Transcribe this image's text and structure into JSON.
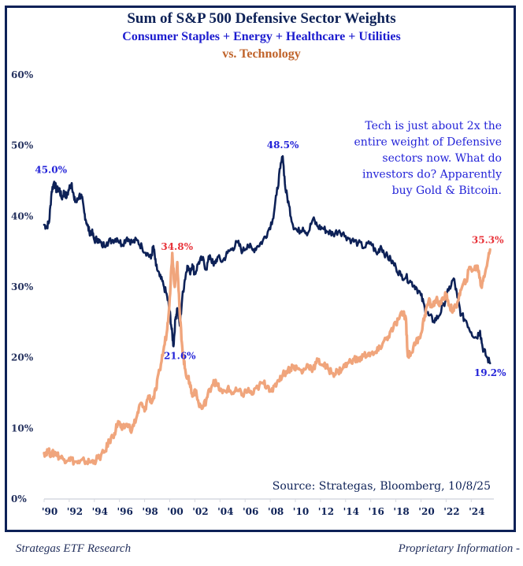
{
  "header": {
    "title": "Sum of S&P 500 Defensive Sector Weights",
    "subtitle": "Consumer Staples + Energy + Healthcare + Utilities",
    "subtitle2": "vs. Technology"
  },
  "footer": {
    "left": "Strategas ETF Research",
    "right": "Proprietary Information -"
  },
  "colors": {
    "defensive": "#0d2157",
    "technology": "#f0a57c",
    "frame": "#0d2157",
    "label_blue": "#2323d8",
    "label_red": "#e8333a",
    "axis": "#d6d8e0"
  },
  "chart_data": {
    "type": "line",
    "title": "Sum of S&P 500 Defensive Sector Weights",
    "subtitle": "Consumer Staples + Energy + Healthcare + Utilities vs. Technology",
    "xlabel": "",
    "ylabel": "",
    "xlim": [
      1990,
      2025.8
    ],
    "ylim": [
      0,
      60
    ],
    "grid": false,
    "legend": "none",
    "y_ticks": [
      "0%",
      "10%",
      "20%",
      "30%",
      "40%",
      "50%",
      "60%"
    ],
    "y_tick_values": [
      0,
      10,
      20,
      30,
      40,
      50,
      60
    ],
    "x_ticks": [
      "'90",
      "'92",
      "'94",
      "'96",
      "'98",
      "'00",
      "'02",
      "'04",
      "'06",
      "'08",
      "'10",
      "'12",
      "'14",
      "'16",
      "'18",
      "'20",
      "'22",
      "'24"
    ],
    "x_tick_values": [
      1990,
      1992,
      1994,
      1996,
      1998,
      2000,
      2002,
      2004,
      2006,
      2008,
      2010,
      2012,
      2014,
      2016,
      2018,
      2020,
      2022,
      2024
    ],
    "series": [
      {
        "name": "Defensive Sectors (Staples + Energy + Healthcare + Utilities)",
        "color": "#0d2157",
        "points": [
          [
            1990.0,
            38.8
          ],
          [
            1990.2,
            38.5
          ],
          [
            1990.4,
            39.2
          ],
          [
            1990.6,
            43.5
          ],
          [
            1990.8,
            44.9
          ],
          [
            1991.0,
            43.6
          ],
          [
            1991.2,
            44.0
          ],
          [
            1991.4,
            42.5
          ],
          [
            1991.6,
            43.5
          ],
          [
            1991.8,
            42.7
          ],
          [
            1992.0,
            44.0
          ],
          [
            1992.2,
            44.7
          ],
          [
            1992.4,
            42.3
          ],
          [
            1992.6,
            42.0
          ],
          [
            1992.8,
            43.0
          ],
          [
            1993.0,
            42.6
          ],
          [
            1993.2,
            40.5
          ],
          [
            1993.4,
            39.0
          ],
          [
            1993.6,
            37.8
          ],
          [
            1993.8,
            37.8
          ],
          [
            1994.0,
            36.6
          ],
          [
            1994.3,
            36.8
          ],
          [
            1994.6,
            35.8
          ],
          [
            1995.0,
            36.3
          ],
          [
            1995.4,
            36.6
          ],
          [
            1995.8,
            36.9
          ],
          [
            1996.2,
            36.0
          ],
          [
            1996.6,
            37.0
          ],
          [
            1997.0,
            36.3
          ],
          [
            1997.4,
            36.6
          ],
          [
            1997.8,
            35.6
          ],
          [
            1998.2,
            34.8
          ],
          [
            1998.5,
            34.0
          ],
          [
            1998.7,
            35.8
          ],
          [
            1998.9,
            33.0
          ],
          [
            1999.2,
            31.5
          ],
          [
            1999.5,
            30.3
          ],
          [
            1999.8,
            28.6
          ],
          [
            2000.0,
            26.5
          ],
          [
            2000.15,
            24.0
          ],
          [
            2000.3,
            21.6
          ],
          [
            2000.45,
            25.5
          ],
          [
            2000.6,
            27.0
          ],
          [
            2000.8,
            24.5
          ],
          [
            2001.0,
            28.5
          ],
          [
            2001.2,
            31.0
          ],
          [
            2001.4,
            33.0
          ],
          [
            2001.6,
            32.0
          ],
          [
            2001.8,
            33.2
          ],
          [
            2002.0,
            31.8
          ],
          [
            2002.3,
            33.5
          ],
          [
            2002.6,
            34.0
          ],
          [
            2002.9,
            32.5
          ],
          [
            2003.2,
            34.5
          ],
          [
            2003.5,
            33.0
          ],
          [
            2003.8,
            34.2
          ],
          [
            2004.2,
            33.6
          ],
          [
            2004.6,
            34.8
          ],
          [
            2005.0,
            35.5
          ],
          [
            2005.4,
            36.3
          ],
          [
            2005.8,
            35.0
          ],
          [
            2006.2,
            36.0
          ],
          [
            2006.6,
            35.2
          ],
          [
            2007.0,
            35.8
          ],
          [
            2007.4,
            36.5
          ],
          [
            2007.8,
            37.8
          ],
          [
            2008.2,
            39.6
          ],
          [
            2008.5,
            43.0
          ],
          [
            2008.8,
            46.8
          ],
          [
            2009.0,
            48.5
          ],
          [
            2009.2,
            44.0
          ],
          [
            2009.5,
            41.5
          ],
          [
            2009.8,
            38.8
          ],
          [
            2010.2,
            37.8
          ],
          [
            2010.6,
            38.4
          ],
          [
            2011.0,
            37.6
          ],
          [
            2011.4,
            39.6
          ],
          [
            2011.8,
            38.5
          ],
          [
            2012.2,
            38.3
          ],
          [
            2012.6,
            37.8
          ],
          [
            2013.0,
            37.5
          ],
          [
            2013.5,
            38.0
          ],
          [
            2014.0,
            37.2
          ],
          [
            2014.5,
            36.6
          ],
          [
            2015.0,
            36.2
          ],
          [
            2015.5,
            35.6
          ],
          [
            2016.0,
            36.3
          ],
          [
            2016.5,
            34.6
          ],
          [
            2016.8,
            35.8
          ],
          [
            2017.2,
            34.5
          ],
          [
            2017.6,
            33.8
          ],
          [
            2018.0,
            32.8
          ],
          [
            2018.4,
            31.6
          ],
          [
            2018.8,
            31.4
          ],
          [
            2019.2,
            30.7
          ],
          [
            2019.6,
            30.0
          ],
          [
            2020.0,
            28.8
          ],
          [
            2020.3,
            27.0
          ],
          [
            2020.6,
            26.0
          ],
          [
            2021.0,
            25.2
          ],
          [
            2021.4,
            25.8
          ],
          [
            2021.8,
            27.5
          ],
          [
            2022.2,
            29.5
          ],
          [
            2022.6,
            31.2
          ],
          [
            2022.9,
            28.5
          ],
          [
            2023.2,
            26.0
          ],
          [
            2023.6,
            25.2
          ],
          [
            2024.0,
            23.6
          ],
          [
            2024.4,
            22.8
          ],
          [
            2024.7,
            23.8
          ],
          [
            2024.9,
            21.5
          ],
          [
            2025.2,
            20.2
          ],
          [
            2025.5,
            19.2
          ]
        ]
      },
      {
        "name": "Technology",
        "color": "#f0a57c",
        "points": [
          [
            1990.0,
            6.5
          ],
          [
            1990.3,
            6.8
          ],
          [
            1990.6,
            6.3
          ],
          [
            1990.9,
            6.6
          ],
          [
            1991.2,
            6.0
          ],
          [
            1991.6,
            5.6
          ],
          [
            1992.0,
            5.8
          ],
          [
            1992.4,
            5.3
          ],
          [
            1992.8,
            5.1
          ],
          [
            1993.2,
            5.4
          ],
          [
            1993.6,
            5.2
          ],
          [
            1994.0,
            5.4
          ],
          [
            1994.4,
            5.9
          ],
          [
            1994.8,
            6.6
          ],
          [
            1995.2,
            8.2
          ],
          [
            1995.6,
            9.3
          ],
          [
            1995.9,
            11.0
          ],
          [
            1996.2,
            9.8
          ],
          [
            1996.6,
            10.6
          ],
          [
            1997.0,
            9.8
          ],
          [
            1997.4,
            11.8
          ],
          [
            1997.7,
            13.6
          ],
          [
            1998.0,
            12.4
          ],
          [
            1998.3,
            14.6
          ],
          [
            1998.6,
            13.8
          ],
          [
            1998.9,
            15.4
          ],
          [
            1999.2,
            18.2
          ],
          [
            1999.5,
            21.0
          ],
          [
            1999.8,
            24.0
          ],
          [
            2000.0,
            28.5
          ],
          [
            2000.2,
            34.8
          ],
          [
            2000.4,
            30.0
          ],
          [
            2000.6,
            33.5
          ],
          [
            2000.8,
            26.0
          ],
          [
            2001.0,
            21.5
          ],
          [
            2001.2,
            18.5
          ],
          [
            2001.4,
            17.2
          ],
          [
            2001.6,
            16.5
          ],
          [
            2001.8,
            14.5
          ],
          [
            2002.0,
            15.5
          ],
          [
            2002.3,
            13.5
          ],
          [
            2002.6,
            12.8
          ],
          [
            2002.9,
            14.0
          ],
          [
            2003.2,
            15.5
          ],
          [
            2003.5,
            16.8
          ],
          [
            2003.8,
            16.0
          ],
          [
            2004.2,
            15.0
          ],
          [
            2004.6,
            15.6
          ],
          [
            2005.0,
            15.0
          ],
          [
            2005.4,
            15.3
          ],
          [
            2005.8,
            14.8
          ],
          [
            2006.2,
            15.4
          ],
          [
            2006.6,
            14.8
          ],
          [
            2007.0,
            15.8
          ],
          [
            2007.4,
            16.4
          ],
          [
            2007.8,
            16.0
          ],
          [
            2008.2,
            15.2
          ],
          [
            2008.6,
            16.8
          ],
          [
            2009.0,
            17.6
          ],
          [
            2009.4,
            18.2
          ],
          [
            2009.8,
            18.8
          ],
          [
            2010.2,
            18.4
          ],
          [
            2010.6,
            18.0
          ],
          [
            2011.0,
            19.0
          ],
          [
            2011.4,
            18.4
          ],
          [
            2011.8,
            19.6
          ],
          [
            2012.2,
            19.0
          ],
          [
            2012.6,
            18.4
          ],
          [
            2013.0,
            17.8
          ],
          [
            2013.4,
            18.0
          ],
          [
            2013.8,
            18.6
          ],
          [
            2014.2,
            19.2
          ],
          [
            2014.6,
            19.8
          ],
          [
            2015.0,
            19.6
          ],
          [
            2015.4,
            20.2
          ],
          [
            2015.8,
            20.6
          ],
          [
            2016.2,
            20.4
          ],
          [
            2016.6,
            21.0
          ],
          [
            2017.0,
            22.2
          ],
          [
            2017.4,
            23.0
          ],
          [
            2017.8,
            24.2
          ],
          [
            2018.2,
            25.4
          ],
          [
            2018.6,
            26.4
          ],
          [
            2018.8,
            25.5
          ],
          [
            2018.95,
            20.2
          ],
          [
            2019.2,
            20.6
          ],
          [
            2019.6,
            22.2
          ],
          [
            2020.0,
            23.4
          ],
          [
            2020.3,
            26.0
          ],
          [
            2020.6,
            28.0
          ],
          [
            2020.9,
            27.2
          ],
          [
            2021.2,
            28.2
          ],
          [
            2021.6,
            27.6
          ],
          [
            2022.0,
            29.0
          ],
          [
            2022.3,
            27.2
          ],
          [
            2022.6,
            26.6
          ],
          [
            2022.9,
            27.8
          ],
          [
            2023.2,
            29.6
          ],
          [
            2023.6,
            31.0
          ],
          [
            2023.9,
            32.8
          ],
          [
            2024.2,
            32.4
          ],
          [
            2024.5,
            33.0
          ],
          [
            2024.8,
            30.0
          ],
          [
            2025.0,
            31.5
          ],
          [
            2025.3,
            33.6
          ],
          [
            2025.5,
            35.3
          ]
        ]
      }
    ],
    "annotations": [
      {
        "text": "45.0%",
        "x": 1990.9,
        "y": 45.0,
        "series": "Defensive",
        "color": "blue"
      },
      {
        "text": "48.5%",
        "x": 2009.0,
        "y": 48.5,
        "series": "Defensive",
        "color": "blue"
      },
      {
        "text": "21.6%",
        "x": 2000.3,
        "y": 21.6,
        "series": "Defensive",
        "color": "blue"
      },
      {
        "text": "19.2%",
        "x": 2025.5,
        "y": 19.2,
        "series": "Defensive",
        "color": "blue"
      },
      {
        "text": "34.8%",
        "x": 2000.2,
        "y": 34.8,
        "series": "Technology",
        "color": "red"
      },
      {
        "text": "35.3%",
        "x": 2025.5,
        "y": 35.3,
        "series": "Technology",
        "color": "red"
      }
    ],
    "callout": [
      "Tech is just about 2x the",
      "entire weight of Defensive",
      "sectors now. What do",
      "investors do? Apparently",
      "buy Gold & Bitcoin."
    ],
    "source": "Source: Strategas, Bloomberg, 10/8/25"
  }
}
